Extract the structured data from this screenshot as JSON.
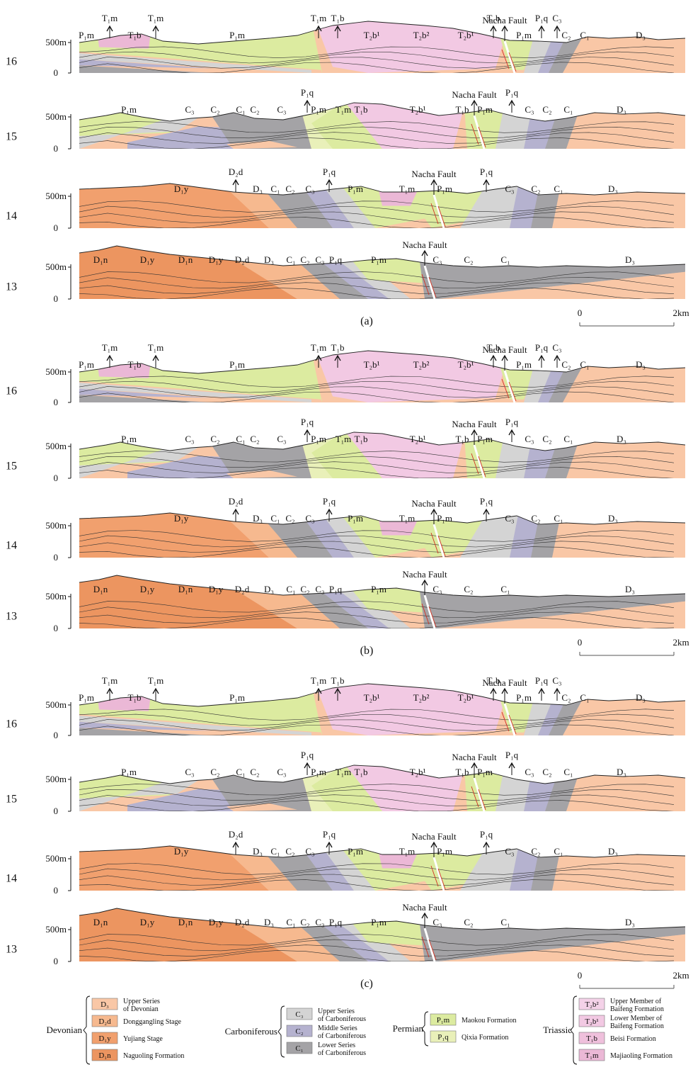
{
  "panels": [
    {
      "caption": "(a)",
      "scale": {
        "zero": "0",
        "end": "2km"
      },
      "rows": [
        {
          "line": "16",
          "top_tick": "500m",
          "bottom_tick": "0",
          "fault": "Nacha Fault",
          "labels": [
            "P₁m",
            "T₁m",
            "T₁b",
            "T₁m",
            "P₁m",
            "T₁m",
            "T₁b",
            "T₂b¹",
            "T₂b²",
            "T₂b¹",
            "T₁b",
            "P₁m",
            "P₁q",
            "C₃",
            "C₂",
            "C₁",
            "D₃"
          ]
        },
        {
          "line": "15",
          "top_tick": "500m",
          "bottom_tick": "0",
          "fault": "Nacha Fault",
          "labels": [
            "P₁m",
            "C₃",
            "C₂",
            "C₁",
            "C₂",
            "C₃",
            "P₁q",
            "P₁m",
            "T₁m",
            "T₁b",
            "T₂b¹",
            "T₁b",
            "P₁m",
            "P₁q",
            "C₃",
            "C₂",
            "C₁",
            "D₃"
          ]
        },
        {
          "line": "14",
          "top_tick": "500m",
          "bottom_tick": "0",
          "fault": "Nacha Fault",
          "labels": [
            "D₁y",
            "D₂d",
            "D₃",
            "C₁",
            "C₂",
            "C₃",
            "P₁q",
            "P₁m",
            "T₁m",
            "P₁m",
            "P₁q",
            "C₃",
            "C₂",
            "C₁",
            "D₃"
          ]
        },
        {
          "line": "13",
          "top_tick": "500m",
          "bottom_tick": "0",
          "fault": "Nacha Fault",
          "labels": [
            "D₁n",
            "D₁y",
            "D₁n",
            "D₁y",
            "D₂d",
            "D₃",
            "C₁",
            "C₂",
            "C₃",
            "P₁q",
            "P₁m",
            "C₃",
            "C₂",
            "C₁",
            "D₃"
          ]
        }
      ]
    },
    {
      "caption": "(b)",
      "scale": {
        "zero": "0",
        "end": "2km"
      },
      "rows": [
        {
          "line": "16",
          "top_tick": "500m",
          "bottom_tick": "0",
          "fault": "Nacha Fault",
          "labels": [
            "P₁m",
            "T₁m",
            "T₁b",
            "T₁m",
            "P₁m",
            "T₁m",
            "T₁b",
            "T₂b¹",
            "T₂b²",
            "T₂b¹",
            "T₁b",
            "P₁m",
            "P₁q",
            "C₃",
            "C₂",
            "C₁",
            "D₃"
          ]
        },
        {
          "line": "15",
          "top_tick": "500m",
          "bottom_tick": "0",
          "fault": "Nacha Fault",
          "labels": [
            "P₁m",
            "C₃",
            "C₂",
            "C₁",
            "C₂",
            "C₃",
            "P₁q",
            "P₁m",
            "T₁m",
            "T₁b",
            "T₂b¹",
            "T₁b",
            "P₁m",
            "P₁q",
            "C₃",
            "C₂",
            "C₁",
            "D₃"
          ]
        },
        {
          "line": "14",
          "top_tick": "500m",
          "bottom_tick": "0",
          "fault": "Nacha Fault",
          "labels": [
            "D₁y",
            "D₂d",
            "D₃",
            "C₁",
            "C₂",
            "C₃",
            "P₁q",
            "P₁m",
            "T₁m",
            "P₁m",
            "P₁q",
            "C₃",
            "C₂",
            "C₁",
            "D₃"
          ]
        },
        {
          "line": "13",
          "top_tick": "500m",
          "bottom_tick": "0",
          "fault": "Nacha Fault",
          "labels": [
            "D₁n",
            "D₁y",
            "D₁n",
            "D₁y",
            "D₂d",
            "D₃",
            "C₁",
            "C₂",
            "C₃",
            "P₁q",
            "P₁m",
            "C₃",
            "C₂",
            "C₁",
            "D₃"
          ]
        }
      ]
    },
    {
      "caption": "(c)",
      "scale": {
        "zero": "0",
        "end": "2km"
      },
      "rows": [
        {
          "line": "16",
          "top_tick": "500m",
          "bottom_tick": "0",
          "fault": "Nacha Fault",
          "labels": [
            "P₁m",
            "T₁m",
            "T₁b",
            "T₁m",
            "P₁m",
            "T₁m",
            "T₁b",
            "T₂b¹",
            "T₂b²",
            "T₂b¹",
            "T₁b",
            "P₁m",
            "P₁q",
            "C₃",
            "C₂",
            "C₁",
            "D₃"
          ]
        },
        {
          "line": "15",
          "top_tick": "500m",
          "bottom_tick": "0",
          "fault": "Nacha Fault",
          "labels": [
            "P₁m",
            "C₃",
            "C₂",
            "C₁",
            "C₂",
            "C₃",
            "P₁q",
            "P₁m",
            "T₁m",
            "T₁b",
            "T₂b¹",
            "T₁b",
            "P₁m",
            "P₁q",
            "C₃",
            "C₂",
            "C₁",
            "D₃"
          ]
        },
        {
          "line": "14",
          "top_tick": "500m",
          "bottom_tick": "0",
          "fault": "Nacha Fault",
          "labels": [
            "D₁y",
            "D₂d",
            "D₃",
            "C₁",
            "C₂",
            "C₃",
            "P₁q",
            "P₁m",
            "T₁m",
            "P₁m",
            "P₁q",
            "C₃",
            "C₂",
            "C₁",
            "D₃"
          ]
        },
        {
          "line": "13",
          "top_tick": "500m",
          "bottom_tick": "0",
          "fault": "Nacha Fault",
          "labels": [
            "D₁n",
            "D₁y",
            "D₁n",
            "D₁y",
            "D₂d",
            "D₃",
            "C₁",
            "C₂",
            "C₃",
            "P₁q",
            "P₁m",
            "C₃",
            "C₂",
            "C₁",
            "D₃"
          ]
        }
      ]
    }
  ],
  "legend": {
    "groups": [
      {
        "name": "Devonian",
        "items": [
          {
            "code": "D₃",
            "desc": "Upper Series of Devonian",
            "color": "#f9c7a6"
          },
          {
            "code": "D₂d",
            "desc": "Donggangling Stage",
            "color": "#f6b98f"
          },
          {
            "code": "D₁y",
            "desc": "Yujiang Stage",
            "color": "#f1a06e"
          },
          {
            "code": "D₁n",
            "desc": "Naguoling Formation",
            "color": "#ec9560"
          }
        ]
      },
      {
        "name": "Carboniferous",
        "items": [
          {
            "code": "C₃",
            "desc": "Upper Series of Carboniferous",
            "color": "#d4d4d4"
          },
          {
            "code": "C₂",
            "desc": "Middle Series of Carboniferous",
            "color": "#b5b2cf"
          },
          {
            "code": "C₁",
            "desc": "Lower Series of Carboniferous",
            "color": "#a4a3a6"
          }
        ]
      },
      {
        "name": "Permian",
        "items": [
          {
            "code": "P₁m",
            "desc": "Maokou Formation",
            "color": "#dceba0"
          },
          {
            "code": "P₁q",
            "desc": "Qixia Formation",
            "color": "#e9f0b9"
          }
        ]
      },
      {
        "name": "Triassic",
        "items": [
          {
            "code": "T₂b²",
            "desc": "Upper Member of Baifeng Formation",
            "color": "#f4d2e8"
          },
          {
            "code": "T₂b¹",
            "desc": "Lower Member of Baifeng Formation",
            "color": "#f2c9e3"
          },
          {
            "code": "T₁b",
            "desc": "Beisi Formation",
            "color": "#efc0dc"
          },
          {
            "code": "T₁m",
            "desc": "Majiaoling Formation",
            "color": "#ebb8d6"
          }
        ]
      }
    ]
  },
  "colors": {
    "D3": "#f9c7a6",
    "D2d": "#f6b98f",
    "D1y": "#f1a06e",
    "D1n": "#ec9560",
    "C3": "#d4d4d4",
    "C2": "#b5b2cf",
    "C1": "#a4a3a6",
    "P1m": "#dceba0",
    "P1q": "#e9f0b9",
    "T2b2": "#f4d2e8",
    "T2b1": "#f2c9e3",
    "T1b": "#efc0dc",
    "T1m": "#ebb8d6",
    "fault_arrow": "#d03020"
  }
}
